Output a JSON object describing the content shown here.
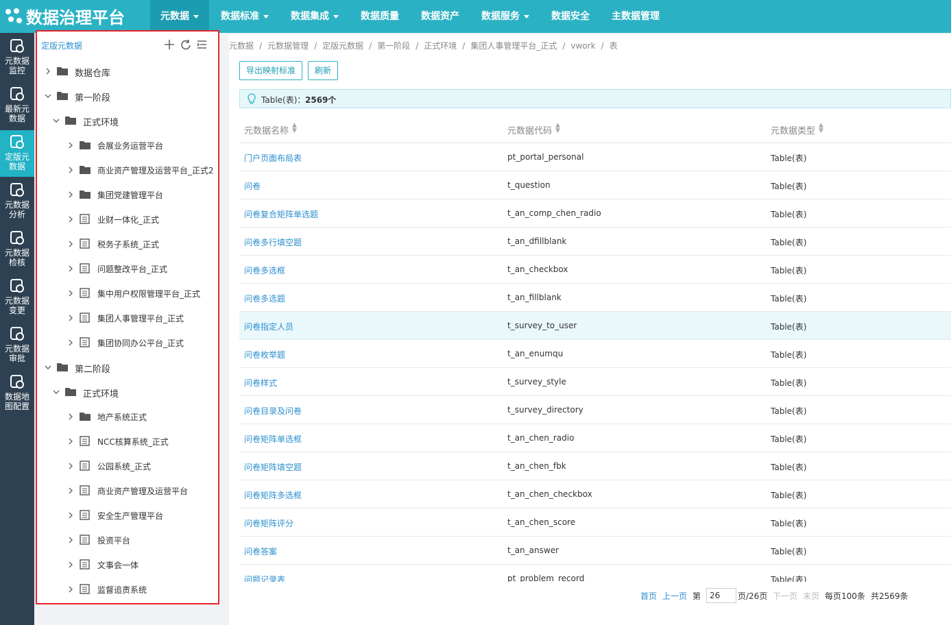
{
  "header": {
    "logo": "数据治理平台",
    "nav": [
      {
        "label": "元数据",
        "dropdown": true,
        "active": true
      },
      {
        "label": "数据标准",
        "dropdown": true
      },
      {
        "label": "数据集成",
        "dropdown": true
      },
      {
        "label": "数据质量"
      },
      {
        "label": "数据资产"
      },
      {
        "label": "数据服务",
        "dropdown": true
      },
      {
        "label": "数据安全"
      },
      {
        "label": "主数据管理"
      }
    ]
  },
  "sidebar": {
    "items": [
      {
        "label": "元数据监控"
      },
      {
        "label": "最新元数据"
      },
      {
        "label": "定版元数据",
        "active": true
      },
      {
        "label": "元数据分析"
      },
      {
        "label": "元数据检核"
      },
      {
        "label": "元数据变更"
      },
      {
        "label": "元数据审批"
      },
      {
        "label": "数据地图配置"
      }
    ]
  },
  "tree": {
    "title": "定版元数据",
    "nodes": [
      {
        "label": "数据仓库",
        "kind": "folder"
      },
      {
        "label": "第一阶段",
        "kind": "folder",
        "children": [
          {
            "label": "正式环境",
            "kind": "folder",
            "children": [
              {
                "label": "会展业务运营平台",
                "kind": "folder"
              },
              {
                "label": "商业资产管理及运营平台_正式2",
                "kind": "folder"
              },
              {
                "label": "集团党建管理平台",
                "kind": "folder"
              },
              {
                "label": "业财一体化_正式",
                "kind": "table"
              },
              {
                "label": "税务子系统_正式",
                "kind": "table"
              },
              {
                "label": "问题整改平台_正式",
                "kind": "table"
              },
              {
                "label": "集中用户权限管理平台_正式",
                "kind": "table"
              },
              {
                "label": "集团人事管理平台_正式",
                "kind": "table"
              },
              {
                "label": "集团协同办公平台_正式",
                "kind": "table"
              }
            ]
          }
        ]
      },
      {
        "label": "第二阶段",
        "kind": "folder",
        "children": [
          {
            "label": "正式环境",
            "kind": "folder",
            "children": [
              {
                "label": "地产系统正式",
                "kind": "folder"
              },
              {
                "label": "NCC核算系统_正式",
                "kind": "table"
              },
              {
                "label": "公园系统_正式",
                "kind": "table"
              },
              {
                "label": "商业资产管理及运营平台",
                "kind": "table"
              },
              {
                "label": "安全生产管理平台",
                "kind": "table"
              },
              {
                "label": "投资平台",
                "kind": "table"
              },
              {
                "label": "文事会一体",
                "kind": "table"
              },
              {
                "label": "监督追责系统",
                "kind": "table"
              }
            ]
          }
        ]
      }
    ]
  },
  "breadcrumb": [
    "元数据",
    "元数据管理",
    "定版元数据",
    "第一阶段",
    "正式环境",
    "集团人事管理平台_正式",
    "vwork",
    "表"
  ],
  "buttons": [
    "导出映射标准",
    "刷新"
  ],
  "info": {
    "label": "Table(表)：",
    "count": "2569个"
  },
  "table": {
    "columns": [
      "元数据名称",
      "元数据代码",
      "元数据类型"
    ],
    "rows": [
      [
        "门户页面布局表",
        "pt_portal_personal",
        "Table(表)"
      ],
      [
        "问卷",
        "t_question",
        "Table(表)"
      ],
      [
        "问卷复合矩阵单选题",
        "t_an_comp_chen_radio",
        "Table(表)"
      ],
      [
        "问卷多行填空题",
        "t_an_dfillblank",
        "Table(表)"
      ],
      [
        "问卷多选框",
        "t_an_checkbox",
        "Table(表)"
      ],
      [
        "问卷多选题",
        "t_an_fillblank",
        "Table(表)"
      ],
      [
        "问卷指定人员",
        "t_survey_to_user",
        "Table(表)"
      ],
      [
        "问卷枚举题",
        "t_an_enumqu",
        "Table(表)"
      ],
      [
        "问卷样式",
        "t_survey_style",
        "Table(表)"
      ],
      [
        "问卷目录及问卷",
        "t_survey_directory",
        "Table(表)"
      ],
      [
        "问卷矩阵单选框",
        "t_an_chen_radio",
        "Table(表)"
      ],
      [
        "问卷矩阵填空题",
        "t_an_chen_fbk",
        "Table(表)"
      ],
      [
        "问卷矩阵多选框",
        "t_an_chen_checkbox",
        "Table(表)"
      ],
      [
        "问卷矩阵评分",
        "t_an_chen_score",
        "Table(表)"
      ],
      [
        "问卷答案",
        "t_an_answer",
        "Table(表)"
      ],
      [
        "问题记录表",
        "pt_problem_record",
        "Table(表)"
      ]
    ],
    "highlighted_row": 6
  },
  "pagination": {
    "first": "首页",
    "prev": "上一页",
    "page_prefix": "第",
    "page": "26",
    "page_suffix": "页/26页",
    "next": "下一页",
    "last": "末页",
    "per_page": "每页100条",
    "total": "共2569条"
  }
}
